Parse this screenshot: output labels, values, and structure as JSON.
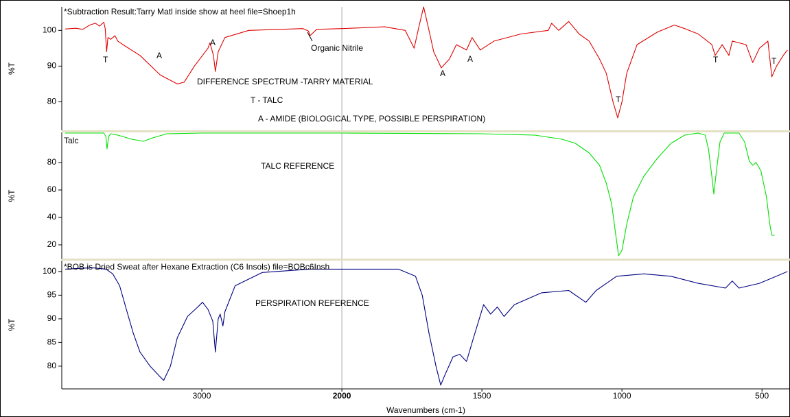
{
  "chart_data": [
    {
      "type": "line",
      "color": "#e00000",
      "ylabel": "%T",
      "ylim": [
        72,
        106.6
      ],
      "yticks": [
        100,
        90,
        80
      ],
      "xlim": [
        4000,
        400
      ],
      "x_break": 2000,
      "x_break_scale": 2,
      "annotations": [
        "*Subtraction Result:Tarry Matl inside show at heel file=Shoep1h",
        "T",
        "A",
        "A",
        "Organic Nitrile",
        "DIFFERENCE SPECTRUM -TARRY MATERIAL",
        "T - TALC",
        "A - AMIDE (BIOLOGICAL TYPE, POSSIBLE PERSPIRATION)",
        "A",
        "A",
        "T",
        "T",
        "T"
      ],
      "x": [
        3976,
        3900,
        3850,
        3800,
        3760,
        3730,
        3700,
        3690,
        3680,
        3670,
        3650,
        3620,
        3600,
        3563,
        3442,
        3296,
        3175,
        3126,
        3053,
        2956,
        2942,
        2917,
        2903,
        2883,
        2835,
        2665,
        2277,
        2238,
        2228,
        2180,
        2000,
        1847,
        1774,
        1742,
        1725,
        1708,
        1689,
        1672,
        1645,
        1616,
        1591,
        1555,
        1535,
        1506,
        1457,
        1360,
        1263,
        1251,
        1226,
        1190,
        1153,
        1117,
        1080,
        1056,
        1032,
        1015,
        1000,
        983,
        946,
        874,
        813,
        776,
        728,
        679,
        667,
        642,
        618,
        606,
        557,
        533,
        509,
        479,
        465,
        448,
        424,
        409
      ],
      "values": [
        100.4,
        100.6,
        100.3,
        101.5,
        102,
        101.2,
        102.3,
        100.5,
        94,
        98,
        97.5,
        98.5,
        97,
        96,
        93,
        87.5,
        85,
        85.5,
        90,
        95,
        96.5,
        93,
        88.5,
        94,
        98,
        100,
        100.5,
        99.8,
        98.5,
        100.3,
        100.5,
        101,
        100,
        95,
        101,
        106.6,
        100,
        94,
        89.5,
        92,
        96,
        94.5,
        98,
        94.5,
        97,
        99,
        100,
        102,
        100,
        102.5,
        99,
        97,
        92,
        88,
        80,
        75.5,
        80,
        88,
        96,
        99.5,
        101.5,
        100.5,
        99,
        96,
        93,
        96,
        93,
        97,
        96,
        91,
        95,
        97,
        87,
        90,
        93,
        94.5
      ]
    },
    {
      "type": "line",
      "color": "#00e000",
      "ylabel": "%T",
      "ylim": [
        9.5,
        102
      ],
      "yticks": [
        80,
        60,
        40,
        20
      ],
      "xlim": [
        4000,
        400
      ],
      "x_break": 2000,
      "x_break_scale": 2,
      "annotations": [
        "Talc",
        "TALC REFERENCE"
      ],
      "x": [
        3976,
        3700,
        3685,
        3677,
        3665,
        3650,
        3600,
        3500,
        3417,
        3350,
        3250,
        3000,
        2500,
        2000,
        1506,
        1311,
        1214,
        1166,
        1117,
        1080,
        1056,
        1037,
        1024,
        1012,
        1000,
        983,
        959,
        922,
        874,
        825,
        776,
        728,
        703,
        691,
        679,
        672,
        662,
        650,
        635,
        582,
        562,
        545,
        533,
        521,
        504,
        484,
        472,
        465,
        455
      ],
      "values": [
        101.5,
        101.5,
        99,
        90,
        99,
        101,
        100,
        97,
        95.5,
        98,
        101,
        101.5,
        101.5,
        101.5,
        101,
        100,
        97,
        94,
        87,
        78,
        65,
        50,
        30,
        12,
        16,
        35,
        55,
        70,
        83,
        94,
        100,
        101.5,
        100,
        90,
        70,
        57,
        75,
        95,
        101.5,
        101.5,
        95,
        81,
        78,
        80,
        74,
        55,
        35,
        27,
        27
      ]
    },
    {
      "type": "line",
      "color": "#000080",
      "ylabel": "%T",
      "ylim": [
        75.2,
        102.3
      ],
      "yticks": [
        100,
        95,
        90,
        85,
        80
      ],
      "xlim": [
        4000,
        400
      ],
      "x_break": 2000,
      "x_break_scale": 2,
      "xticks": [
        3000,
        2000,
        1500,
        1000,
        500
      ],
      "xlabel": "Wavenumbers (cm-1)",
      "annotations": [
        "*BOB is Dried Sweat after Hexane Extraction (C6 Insols) file=BOBc6Insh",
        "PERSPIRATION REFERENCE"
      ],
      "x": [
        3976,
        3781,
        3684,
        3636,
        3587,
        3539,
        3490,
        3442,
        3369,
        3296,
        3272,
        3224,
        3175,
        3102,
        3029,
        2995,
        2956,
        2922,
        2903,
        2883,
        2869,
        2849,
        2835,
        2762,
        2568,
        2228,
        2000,
        1798,
        1737,
        1713,
        1689,
        1664,
        1647,
        1633,
        1603,
        1579,
        1555,
        1530,
        1494,
        1469,
        1445,
        1421,
        1384,
        1287,
        1190,
        1129,
        1092,
        1019,
        922,
        825,
        728,
        630,
        606,
        582,
        509,
        409
      ],
      "values": [
        100.5,
        100.8,
        100.5,
        99.5,
        97,
        92,
        87,
        83,
        80,
        77.7,
        77,
        80,
        86,
        90.5,
        92.5,
        93.5,
        92,
        89.5,
        83,
        90,
        91,
        88.5,
        91.5,
        97,
        99.8,
        100.5,
        100.5,
        100.5,
        99,
        95,
        87,
        80,
        76,
        78,
        82,
        82.5,
        81,
        86,
        93,
        91,
        92.5,
        90.5,
        93,
        95.5,
        96,
        93.5,
        96,
        99,
        99.5,
        99,
        97.5,
        96.5,
        98,
        96.5,
        97.5,
        100
      ]
    }
  ]
}
